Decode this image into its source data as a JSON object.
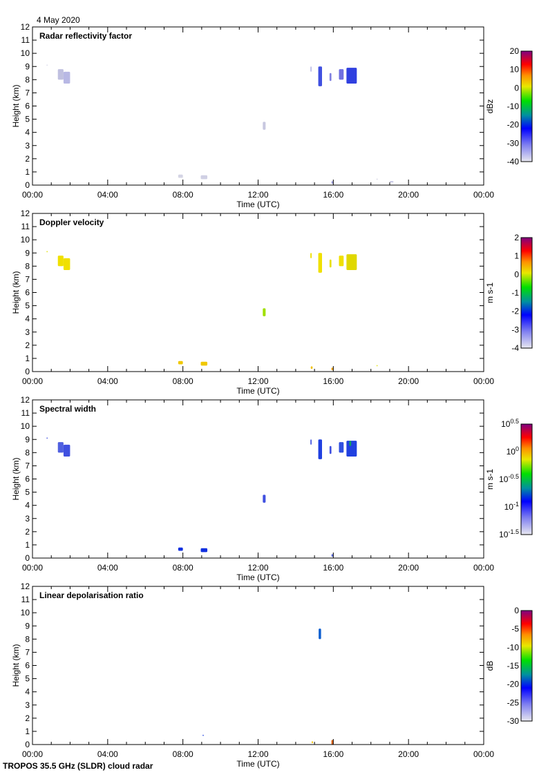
{
  "date_label": "4 May 2020",
  "footer": "TROPOS 35.5 GHz (SLDR) cloud radar",
  "chart_data": [
    {
      "type": "heatmap",
      "title": "Radar reflectivity factor",
      "xlabel": "Time (UTC)",
      "ylabel": "Height (km)",
      "xlim": [
        0,
        24
      ],
      "ylim": [
        0,
        12
      ],
      "xticks": [
        "00:00",
        "04:00",
        "08:00",
        "12:00",
        "16:00",
        "20:00",
        "00:00"
      ],
      "yticks": [
        "0",
        "1",
        "2",
        "3",
        "4",
        "5",
        "6",
        "7",
        "8",
        "9",
        "10",
        "11",
        "12"
      ],
      "colorbar": {
        "label": "dBz",
        "ticks": [
          "20",
          "10",
          "0",
          "-10",
          "-20",
          "-30",
          "-40"
        ],
        "range": [
          -40,
          20
        ],
        "scale": "linear"
      },
      "echoes": [
        {
          "t": [
            0.75,
            0.8
          ],
          "h": [
            9.05,
            9.15
          ],
          "color": "#d8d8e8"
        },
        {
          "t": [
            1.35,
            1.65
          ],
          "h": [
            8.0,
            8.8
          ],
          "color": "#c0c0e0"
        },
        {
          "t": [
            1.65,
            2.0
          ],
          "h": [
            7.7,
            8.6
          ],
          "color": "#b8b8e4"
        },
        {
          "t": [
            7.75,
            8.0
          ],
          "h": [
            0.55,
            0.8
          ],
          "color": "#d4d4e4"
        },
        {
          "t": [
            8.95,
            9.3
          ],
          "h": [
            0.45,
            0.75
          ],
          "color": "#d0d0e4"
        },
        {
          "t": [
            12.25,
            12.4
          ],
          "h": [
            4.2,
            4.8
          ],
          "color": "#c8c8e0"
        },
        {
          "t": [
            14.78,
            14.85
          ],
          "h": [
            8.6,
            9.0
          ],
          "color": "#c0c0e8"
        },
        {
          "t": [
            15.2,
            15.4
          ],
          "h": [
            7.5,
            9.0
          ],
          "color": "#4050e0"
        },
        {
          "t": [
            15.8,
            15.9
          ],
          "h": [
            7.9,
            8.5
          ],
          "color": "#8080e0"
        },
        {
          "t": [
            16.3,
            16.55
          ],
          "h": [
            8.0,
            8.8
          ],
          "color": "#7070e0"
        },
        {
          "t": [
            16.7,
            17.25
          ],
          "h": [
            7.7,
            8.9
          ],
          "color": "#3040e0"
        },
        {
          "t": [
            15.9,
            16.0
          ],
          "h": [
            0.1,
            0.3
          ],
          "color": "#a0a0e0"
        },
        {
          "t": [
            18.3,
            18.35
          ],
          "h": [
            0.4,
            0.5
          ],
          "color": "#d0d0e0"
        },
        {
          "t": [
            19.0,
            19.2
          ],
          "h": [
            0.2,
            0.3
          ],
          "color": "#c0c0e0"
        }
      ]
    },
    {
      "type": "heatmap",
      "title": "Doppler velocity",
      "xlabel": "Time (UTC)",
      "ylabel": "Height (km)",
      "xlim": [
        0,
        24
      ],
      "ylim": [
        0,
        12
      ],
      "xticks": [
        "00:00",
        "04:00",
        "08:00",
        "12:00",
        "16:00",
        "20:00",
        "00:00"
      ],
      "yticks": [
        "0",
        "1",
        "2",
        "3",
        "4",
        "5",
        "6",
        "7",
        "8",
        "9",
        "10",
        "11",
        "12"
      ],
      "colorbar": {
        "label": "m s-1",
        "ticks": [
          "2",
          "1",
          "0",
          "-1",
          "-2",
          "-3",
          "-4"
        ],
        "range": [
          -4,
          2
        ],
        "scale": "linear"
      },
      "echoes": [
        {
          "t": [
            0.75,
            0.8
          ],
          "h": [
            9.05,
            9.15
          ],
          "color": "#e0e000"
        },
        {
          "t": [
            1.35,
            1.65
          ],
          "h": [
            8.0,
            8.8
          ],
          "color": "#f0e000"
        },
        {
          "t": [
            1.65,
            2.0
          ],
          "h": [
            7.7,
            8.6
          ],
          "color": "#f0e000"
        },
        {
          "t": [
            7.75,
            8.0
          ],
          "h": [
            0.55,
            0.8
          ],
          "color": "#f0c800"
        },
        {
          "t": [
            8.95,
            9.3
          ],
          "h": [
            0.45,
            0.75
          ],
          "color": "#f0c800"
        },
        {
          "t": [
            12.25,
            12.4
          ],
          "h": [
            4.2,
            4.8
          ],
          "color": "#a0e000"
        },
        {
          "t": [
            14.78,
            14.85
          ],
          "h": [
            8.6,
            9.0
          ],
          "color": "#f0e000"
        },
        {
          "t": [
            15.2,
            15.4
          ],
          "h": [
            7.5,
            9.0
          ],
          "color": "#f0e000"
        },
        {
          "t": [
            15.8,
            15.9
          ],
          "h": [
            7.9,
            8.5
          ],
          "color": "#e8e000"
        },
        {
          "t": [
            16.3,
            16.55
          ],
          "h": [
            8.0,
            8.8
          ],
          "color": "#f0e000"
        },
        {
          "t": [
            16.7,
            17.25
          ],
          "h": [
            7.7,
            8.9
          ],
          "color": "#e0d800"
        },
        {
          "t": [
            14.8,
            14.9
          ],
          "h": [
            0.2,
            0.4
          ],
          "color": "#f0c000"
        },
        {
          "t": [
            15.9,
            16.0
          ],
          "h": [
            0.1,
            0.3
          ],
          "color": "#f0a000"
        },
        {
          "t": [
            18.3,
            18.35
          ],
          "h": [
            0.4,
            0.5
          ],
          "color": "#e0e000"
        }
      ]
    },
    {
      "type": "heatmap",
      "title": "Spectral width",
      "xlabel": "Time (UTC)",
      "ylabel": "Height (km)",
      "xlim": [
        0,
        24
      ],
      "ylim": [
        0,
        12
      ],
      "xticks": [
        "00:00",
        "04:00",
        "08:00",
        "12:00",
        "16:00",
        "20:00",
        "00:00"
      ],
      "yticks": [
        "0",
        "1",
        "2",
        "3",
        "4",
        "5",
        "6",
        "7",
        "8",
        "9",
        "10",
        "11",
        "12"
      ],
      "colorbar": {
        "label": "m s-1",
        "ticks": [
          "10^0.5",
          "10^0",
          "10^-0.5",
          "10^-1",
          "10^-1.5"
        ],
        "range": [
          -1.5,
          0.5
        ],
        "scale": "log10"
      },
      "echoes": [
        {
          "t": [
            0.75,
            0.8
          ],
          "h": [
            9.05,
            9.15
          ],
          "color": "#4050e0"
        },
        {
          "t": [
            1.35,
            1.65
          ],
          "h": [
            8.0,
            8.8
          ],
          "color": "#5060e0"
        },
        {
          "t": [
            1.65,
            2.0
          ],
          "h": [
            7.7,
            8.6
          ],
          "color": "#4050e0"
        },
        {
          "t": [
            7.75,
            8.0
          ],
          "h": [
            0.55,
            0.8
          ],
          "color": "#1030e0"
        },
        {
          "t": [
            8.95,
            9.3
          ],
          "h": [
            0.45,
            0.75
          ],
          "color": "#1030e0"
        },
        {
          "t": [
            12.25,
            12.4
          ],
          "h": [
            4.2,
            4.8
          ],
          "color": "#4050e0"
        },
        {
          "t": [
            14.78,
            14.85
          ],
          "h": [
            8.6,
            9.0
          ],
          "color": "#5060e0"
        },
        {
          "t": [
            15.2,
            15.4
          ],
          "h": [
            7.5,
            9.0
          ],
          "color": "#2040e0"
        },
        {
          "t": [
            15.8,
            15.9
          ],
          "h": [
            7.9,
            8.5
          ],
          "color": "#4050e0"
        },
        {
          "t": [
            16.3,
            16.55
          ],
          "h": [
            8.0,
            8.8
          ],
          "color": "#3050e0"
        },
        {
          "t": [
            16.7,
            17.25
          ],
          "h": [
            7.7,
            8.9
          ],
          "color": "#2040e0"
        },
        {
          "t": [
            16.85,
            16.95
          ],
          "h": [
            8.5,
            8.9
          ],
          "color": "#10a060"
        },
        {
          "t": [
            15.9,
            16.0
          ],
          "h": [
            0.1,
            0.3
          ],
          "color": "#6070e0"
        }
      ]
    },
    {
      "type": "heatmap",
      "title": "Linear depolarisation ratio",
      "xlabel": "Time (UTC)",
      "ylabel": "Height (km)",
      "xlim": [
        0,
        24
      ],
      "ylim": [
        0,
        12
      ],
      "xticks": [
        "00:00",
        "04:00",
        "08:00",
        "12:00",
        "16:00",
        "20:00",
        "00:00"
      ],
      "yticks": [
        "0",
        "1",
        "2",
        "3",
        "4",
        "5",
        "6",
        "7",
        "8",
        "9",
        "10",
        "11",
        "12"
      ],
      "colorbar": {
        "label": "dB",
        "ticks": [
          "0",
          "-5",
          "-10",
          "-15",
          "-20",
          "-25",
          "-30"
        ],
        "range": [
          -30,
          0
        ],
        "scale": "linear"
      },
      "echoes": [
        {
          "t": [
            15.22,
            15.35
          ],
          "h": [
            8.0,
            8.8
          ],
          "color": "#1060d0"
        },
        {
          "t": [
            9.05,
            9.1
          ],
          "h": [
            0.65,
            0.75
          ],
          "color": "#2040e0"
        },
        {
          "t": [
            14.85,
            14.92
          ],
          "h": [
            0.1,
            0.25
          ],
          "color": "#f0c000"
        },
        {
          "t": [
            15.9,
            16.0
          ],
          "h": [
            0.0,
            0.35
          ],
          "color": "#e06000"
        }
      ]
    }
  ]
}
